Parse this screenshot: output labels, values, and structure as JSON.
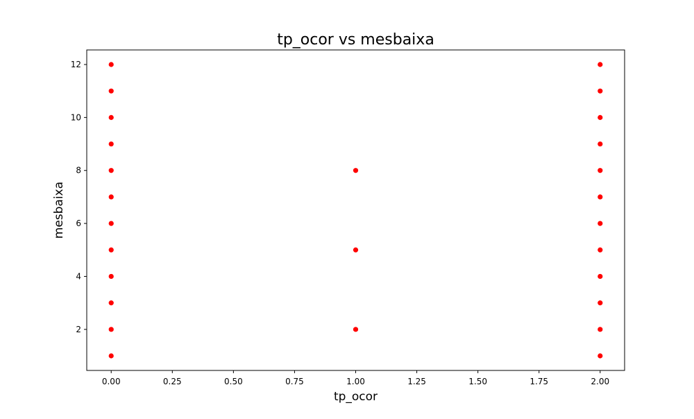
{
  "chart_data": {
    "type": "scatter",
    "title": "tp_ocor vs mesbaixa",
    "xlabel": "tp_ocor",
    "ylabel": "mesbaixa",
    "xlim": [
      -0.1,
      2.1
    ],
    "ylim": [
      0.45,
      12.55
    ],
    "xticks": [
      0.0,
      0.25,
      0.5,
      0.75,
      1.0,
      1.25,
      1.5,
      1.75,
      2.0
    ],
    "xtick_labels": [
      "0.00",
      "0.25",
      "0.50",
      "0.75",
      "1.00",
      "1.25",
      "1.50",
      "1.75",
      "2.00"
    ],
    "yticks": [
      2,
      4,
      6,
      8,
      10,
      12
    ],
    "ytick_labels": [
      "2",
      "4",
      "6",
      "8",
      "10",
      "12"
    ],
    "grid": false,
    "marker_color": "#ff0000",
    "points": [
      {
        "x": 0,
        "y": 1
      },
      {
        "x": 0,
        "y": 2
      },
      {
        "x": 0,
        "y": 3
      },
      {
        "x": 0,
        "y": 4
      },
      {
        "x": 0,
        "y": 5
      },
      {
        "x": 0,
        "y": 6
      },
      {
        "x": 0,
        "y": 7
      },
      {
        "x": 0,
        "y": 8
      },
      {
        "x": 0,
        "y": 9
      },
      {
        "x": 0,
        "y": 10
      },
      {
        "x": 0,
        "y": 11
      },
      {
        "x": 0,
        "y": 12
      },
      {
        "x": 1,
        "y": 2
      },
      {
        "x": 1,
        "y": 5
      },
      {
        "x": 1,
        "y": 8
      },
      {
        "x": 2,
        "y": 1
      },
      {
        "x": 2,
        "y": 2
      },
      {
        "x": 2,
        "y": 3
      },
      {
        "x": 2,
        "y": 4
      },
      {
        "x": 2,
        "y": 5
      },
      {
        "x": 2,
        "y": 6
      },
      {
        "x": 2,
        "y": 7
      },
      {
        "x": 2,
        "y": 8
      },
      {
        "x": 2,
        "y": 9
      },
      {
        "x": 2,
        "y": 10
      },
      {
        "x": 2,
        "y": 11
      },
      {
        "x": 2,
        "y": 12
      }
    ]
  }
}
